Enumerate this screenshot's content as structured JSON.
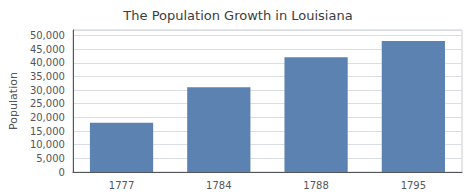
{
  "chart_data": {
    "type": "bar",
    "title": "The Population Growth in Louisiana",
    "categories": [
      "1777",
      "1784",
      "1788",
      "1795"
    ],
    "values": [
      18000,
      31000,
      42000,
      48000
    ],
    "color": "#5b82b0",
    "ylabel": "Population",
    "ylim": [
      0,
      52000
    ],
    "yticks": [
      0,
      {
        "value": 5000,
        "label": "5,000"
      },
      {
        "value": 10000,
        "label": "10,000"
      },
      {
        "value": 15000,
        "label": "15,000"
      },
      {
        "value": 20000,
        "label": "20,000"
      },
      {
        "value": 25000,
        "label": "25,000"
      },
      {
        "value": 30000,
        "label": "30,000"
      },
      {
        "value": 35000,
        "label": "35,000"
      },
      {
        "value": 40000,
        "label": "40,000"
      },
      {
        "value": 45000,
        "label": "45,000"
      },
      {
        "value": 50000,
        "label": "50,000"
      }
    ],
    "grid": true
  }
}
